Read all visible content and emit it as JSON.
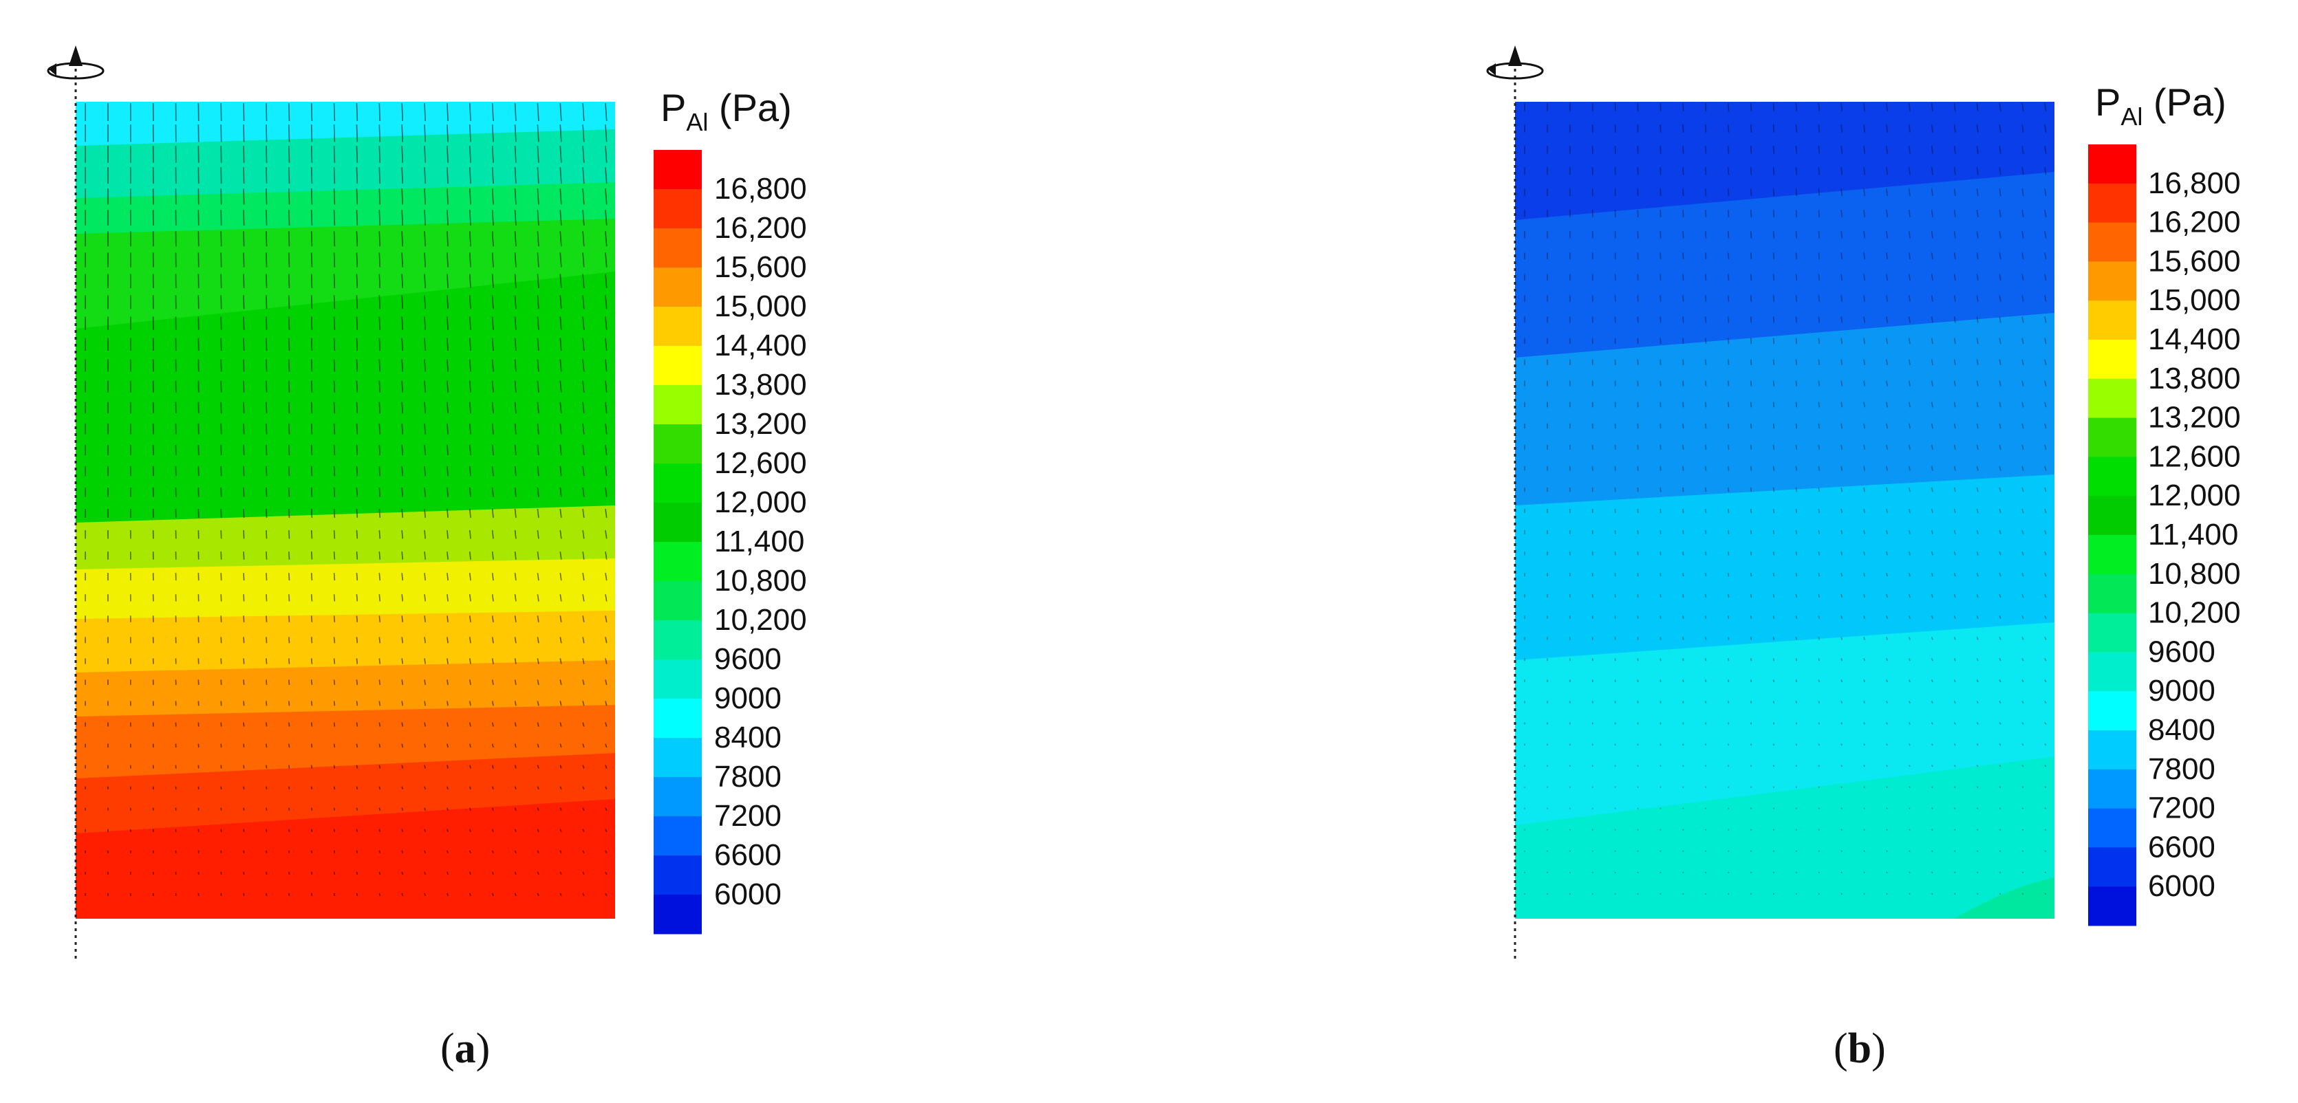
{
  "colorbar": {
    "title_main": "P",
    "title_sub": "Al",
    "title_unit": " (Pa)",
    "labels": [
      "16,800",
      "16,200",
      "15,600",
      "15,000",
      "14,400",
      "13,800",
      "13,200",
      "12,600",
      "12,000",
      "11,400",
      "10,800",
      "10,200",
      "9600",
      "9000",
      "8400",
      "7800",
      "7200",
      "6600",
      "6000"
    ],
    "colors": [
      "#ff0000",
      "#ff3300",
      "#ff6600",
      "#ff9900",
      "#ffcc00",
      "#ffff00",
      "#99ff00",
      "#33dd00",
      "#00dd00",
      "#00cc00",
      "#00ee22",
      "#00e855",
      "#00ee99",
      "#00eecc",
      "#00ffff",
      "#00ccff",
      "#0099ff",
      "#0066ff",
      "#0033ee",
      "#0011dd"
    ]
  },
  "panels": [
    {
      "id": "a",
      "caption_open": "(",
      "caption_letter": "a",
      "caption_close": ")",
      "bands": [
        {
          "color": "#22ccf4",
          "level": 7800
        },
        {
          "color": "#11eeff",
          "level": 8400
        },
        {
          "color": "#00e6aa",
          "level": 9600
        },
        {
          "color": "#00e860",
          "level": 10200
        },
        {
          "color": "#14dc14",
          "level": 11400
        },
        {
          "color": "#00d200",
          "level": 12600
        },
        {
          "color": "#a8e800",
          "level": 13800
        },
        {
          "color": "#f0f000",
          "level": 14400
        },
        {
          "color": "#ffc800",
          "level": 15000
        },
        {
          "color": "#ff9a00",
          "level": 15600
        },
        {
          "color": "#ff6800",
          "level": 16200
        },
        {
          "color": "#ff3c00",
          "level": 16800
        },
        {
          "color": "#ff1e00",
          "level": 17000
        }
      ]
    },
    {
      "id": "b",
      "caption_open": "(",
      "caption_letter": "b",
      "caption_close": ")",
      "bands": [
        {
          "color": "#0a3ee8",
          "level": 6300
        },
        {
          "color": "#0c62f0",
          "level": 6900
        },
        {
          "color": "#0a96f4",
          "level": 7500
        },
        {
          "color": "#00c8fa",
          "level": 8100
        },
        {
          "color": "#0ae8f2",
          "level": 8700
        },
        {
          "color": "#00ecd0",
          "level": 9300
        },
        {
          "color": "#00e8a0",
          "level": 9900
        }
      ]
    }
  ]
}
